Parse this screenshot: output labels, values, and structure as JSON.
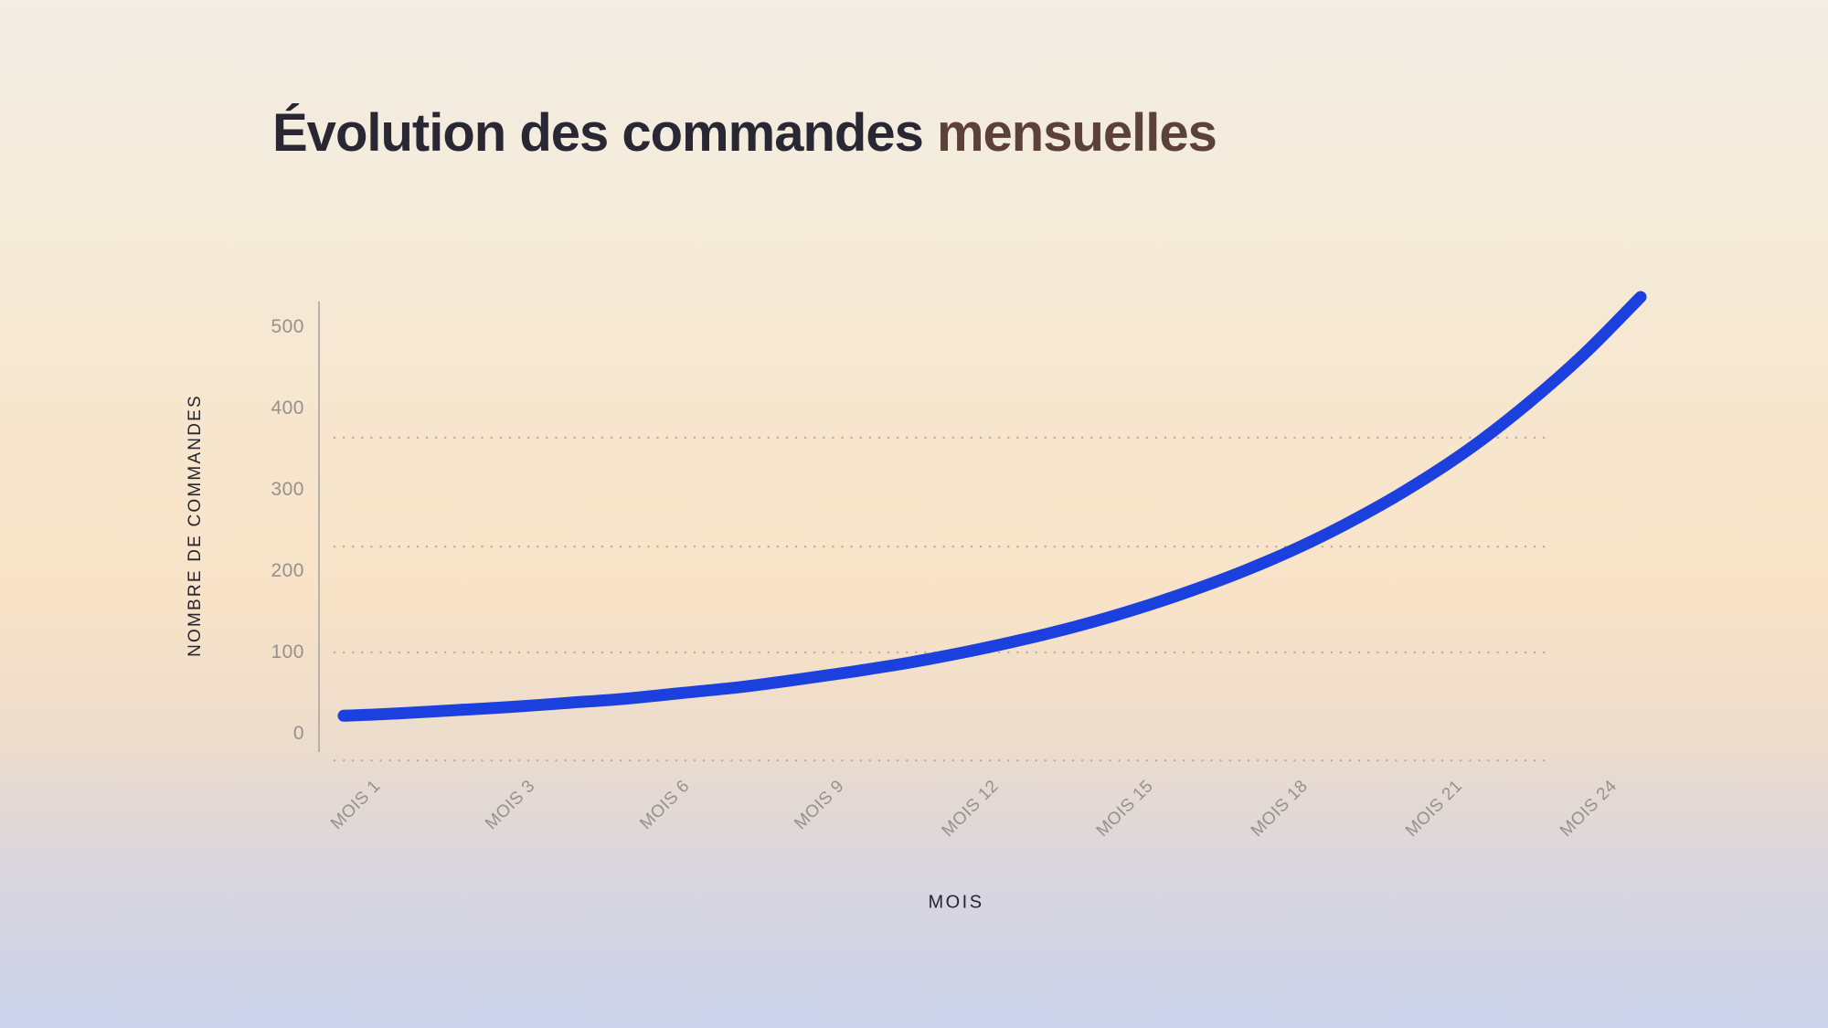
{
  "title": {
    "full": "Évolution des commandes mensuelles",
    "main": "Évolution des commandes",
    "accent": "mensuelles"
  },
  "colors": {
    "line": "#1b40de",
    "title_dark": "#2a2734",
    "title_accent": "#5c403a",
    "tick_label": "#97918b",
    "axis_line": "#b9b2aa",
    "grid_dot": "#a89d92",
    "axis_title": "#26242c",
    "bg_top": "#f2ede5",
    "bg_mid_peach": "#f8e3c7",
    "bg_bottom": "#ccd3eb"
  },
  "chart_data": {
    "type": "line",
    "title": "Évolution des commandes mensuelles",
    "xlabel": "MOIS",
    "ylabel": "NOMBRE DE COMMANDES",
    "x": [
      1,
      2,
      3,
      4,
      5,
      6,
      7,
      8,
      9,
      10,
      11,
      12,
      13,
      14,
      15,
      16,
      17,
      18,
      19,
      20,
      21,
      22,
      23,
      24
    ],
    "values": [
      21,
      24,
      28,
      32,
      37,
      42,
      49,
      56,
      65,
      75,
      86,
      99,
      114,
      131,
      151,
      174,
      200,
      230,
      265,
      305,
      351,
      405,
      466,
      536
    ],
    "x_tick_labels": [
      "MOIS 1",
      "MOIS 3",
      "MOIS 6",
      "MOIS 9",
      "MOIS 12",
      "MOIS 15",
      "MOIS 18",
      "MOIS 21",
      "MOIS 24"
    ],
    "y_ticks": [
      0,
      100,
      200,
      300,
      400,
      500
    ],
    "ylim": [
      0,
      500
    ],
    "grid": "dotted-horizontal",
    "gridlines_y_values": [
      363,
      229,
      99,
      -34
    ],
    "legend": "none",
    "line_color": "#1b40de",
    "line_width": 13
  }
}
